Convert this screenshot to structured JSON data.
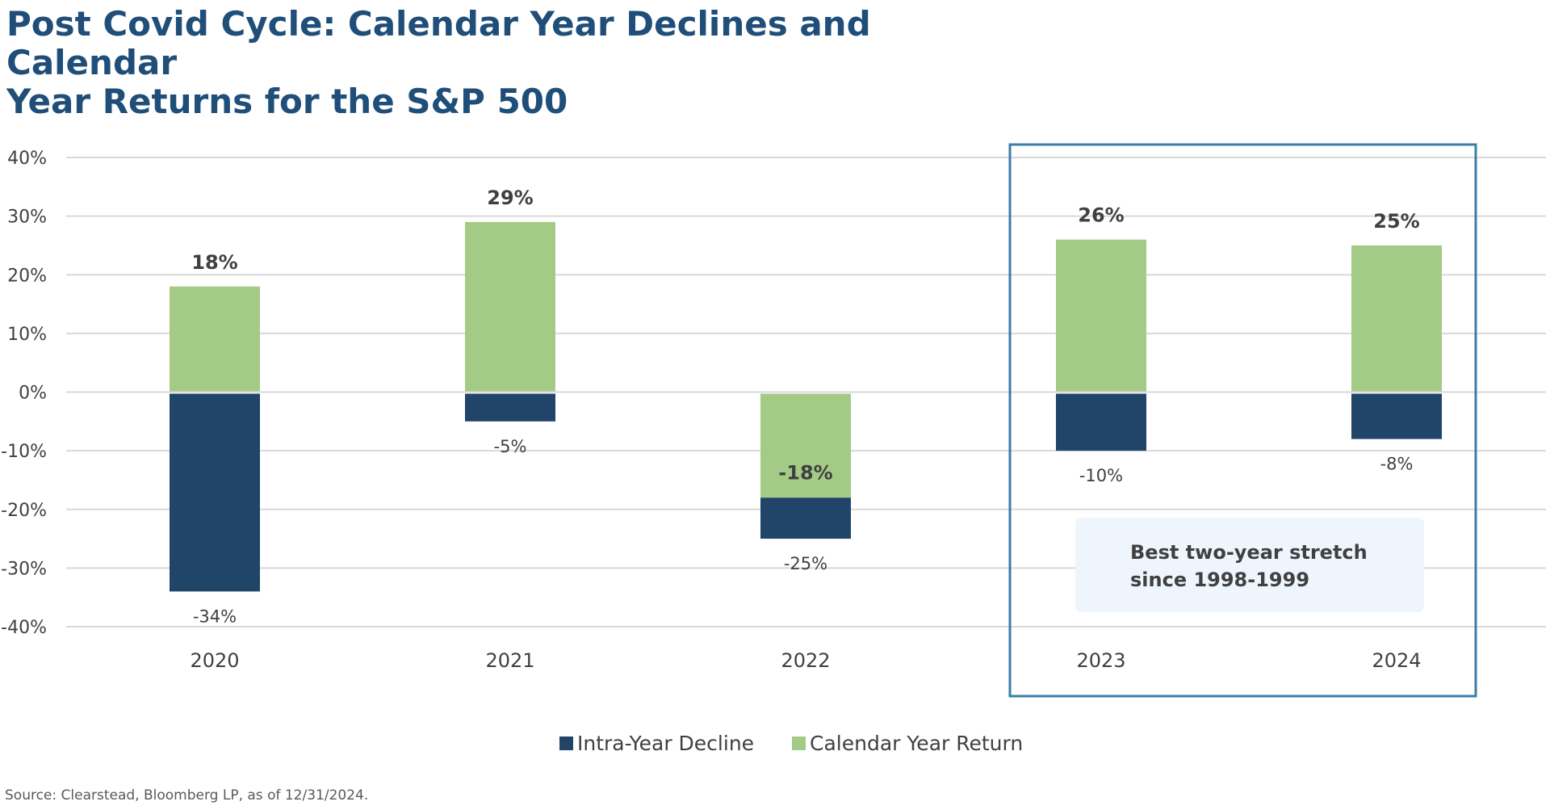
{
  "title_lines": [
    "Post Covid Cycle: Calendar Year Declines and Calendar",
    "Year Returns for the S&P 500"
  ],
  "source": "Source: Clearstead, Bloomberg LP, as of 12/31/2024.",
  "annotation": [
    "Best two-year stretch",
    "since 1998-1999"
  ],
  "colors": {
    "decline": "#214469",
    "return": "#a4cb86",
    "highlight_box": "#3b7ea8",
    "annotation_bg": "#eef5fd",
    "grid": "#d9d9d9",
    "title": "#1f4e79"
  },
  "chart_data": {
    "type": "bar",
    "categories": [
      "2020",
      "2021",
      "2022",
      "2023",
      "2024"
    ],
    "series": [
      {
        "name": "Intra-Year Decline",
        "values": [
          -34,
          -5,
          -25,
          -10,
          -8
        ],
        "labels": [
          "-34%",
          "-5%",
          "-25%",
          "-10%",
          "-8%"
        ]
      },
      {
        "name": "Calendar Year Return",
        "values": [
          18,
          29,
          -18,
          26,
          25
        ],
        "labels": [
          "18%",
          "29%",
          "-18%",
          "26%",
          "25%"
        ]
      }
    ],
    "ylim": [
      -40,
      40
    ],
    "yticks": [
      40,
      30,
      20,
      10,
      0,
      -10,
      -20,
      -30,
      -40
    ],
    "ytick_labels": [
      "40%",
      "30%",
      "20%",
      "10%",
      "0%",
      "-10%",
      "-20%",
      "-30%",
      "-40%"
    ],
    "grid": true,
    "legend": "bottom-center",
    "highlighted_categories": [
      "2023",
      "2024"
    ]
  }
}
